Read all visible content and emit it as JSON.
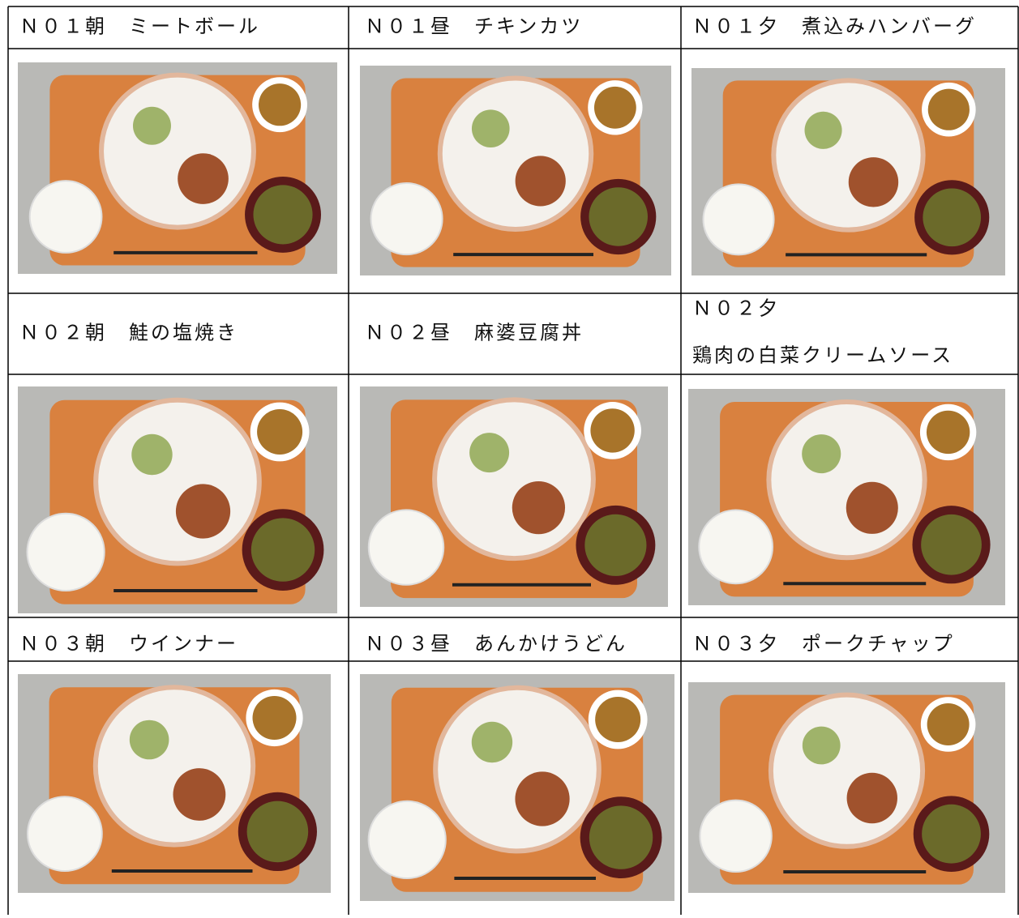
{
  "menu": {
    "rows": [
      {
        "cells": [
          {
            "lines": [
              "Ｎ０１朝　ミートボール"
            ]
          },
          {
            "lines": [
              "Ｎ０１昼　チキンカツ"
            ]
          },
          {
            "lines": [
              "Ｎ０１夕　煮込みハンバーグ"
            ]
          }
        ]
      },
      {
        "cells": [
          {
            "lines": [
              "Ｎ０２朝　鮭の塩焼き"
            ]
          },
          {
            "lines": [
              "Ｎ０２昼　麻婆豆腐丼"
            ]
          },
          {
            "lines": [
              "Ｎ０２夕",
              "鶏肉の白菜クリームソース"
            ]
          }
        ]
      },
      {
        "cells": [
          {
            "lines": [
              "Ｎ０３朝　ウインナー"
            ]
          },
          {
            "lines": [
              "Ｎ０３昼　あんかけうどん"
            ]
          },
          {
            "lines": [
              "Ｎ０３夕　ポークチャップ"
            ]
          }
        ]
      }
    ]
  }
}
